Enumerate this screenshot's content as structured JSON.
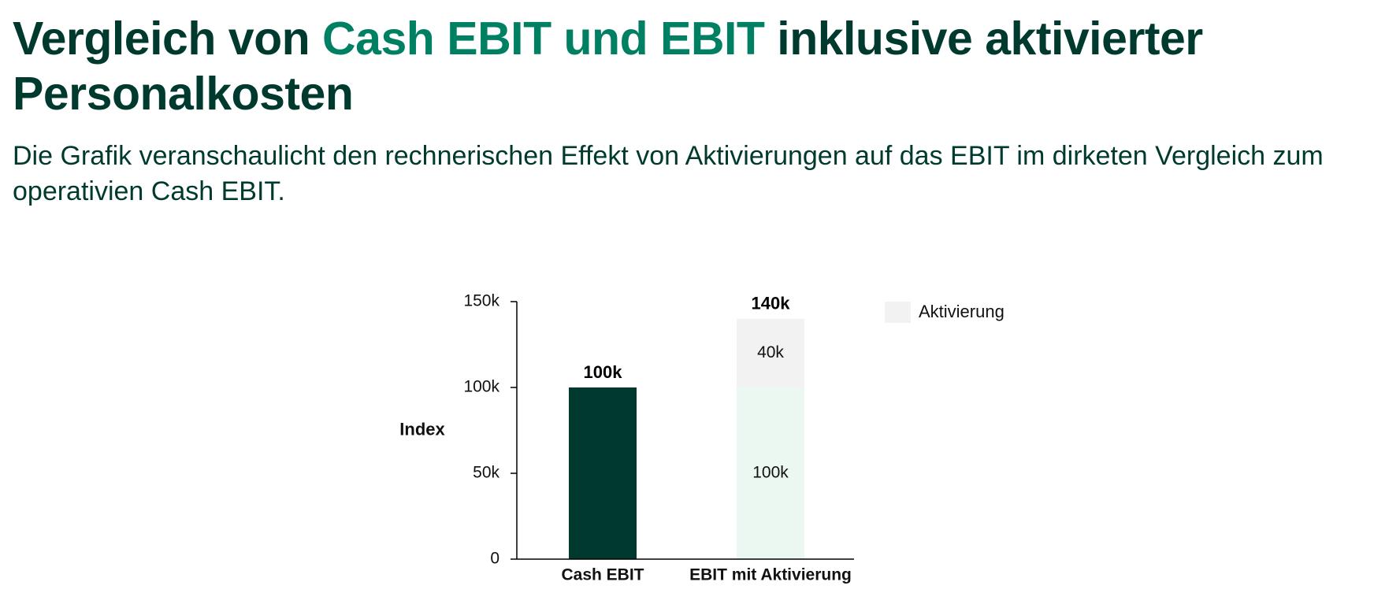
{
  "header": {
    "title_prefix": "Vergleich von ",
    "title_accent": "Cash EBIT und EBIT",
    "title_suffix": " inklusive aktivierter Personalkosten",
    "subtitle": "Die Grafik veranschaulicht den rechnerischen Effekt von Aktivierungen auf das EBIT im dirketen Vergleich zum operativien Cash EBIT."
  },
  "colors": {
    "title": "#003a2f",
    "accent": "#008063",
    "cash_ebit_bar": "#003a2f",
    "base_segment": "#eaf8f1",
    "aktivierung_segment": "#f2f2f2",
    "axis": "#000000"
  },
  "chart_data": {
    "type": "bar",
    "stacked": true,
    "ylabel": "Index",
    "ylim": [
      0,
      150000
    ],
    "yticks": [
      0,
      50000,
      100000,
      150000
    ],
    "ytick_labels": [
      "0",
      "50k",
      "100k",
      "150k"
    ],
    "legend_position": "top-right",
    "grid": false,
    "categories": [
      "Cash EBIT",
      "EBIT mit Aktivierung"
    ],
    "totals": [
      100000,
      140000
    ],
    "total_labels": [
      "100k",
      "140k"
    ],
    "segments": [
      {
        "category": "Cash EBIT",
        "base": 0,
        "value": 100000,
        "label": "",
        "color": "#003a2f"
      },
      {
        "category": "EBIT mit Aktivierung",
        "base": 0,
        "value": 100000,
        "label": "100k",
        "color": "#eaf8f1"
      },
      {
        "category": "EBIT mit Aktivierung",
        "base": 100000,
        "value": 40000,
        "label": "40k",
        "color": "#f2f2f2"
      }
    ],
    "legend": [
      {
        "name": "Aktivierung",
        "color": "#f2f2f2"
      }
    ]
  }
}
